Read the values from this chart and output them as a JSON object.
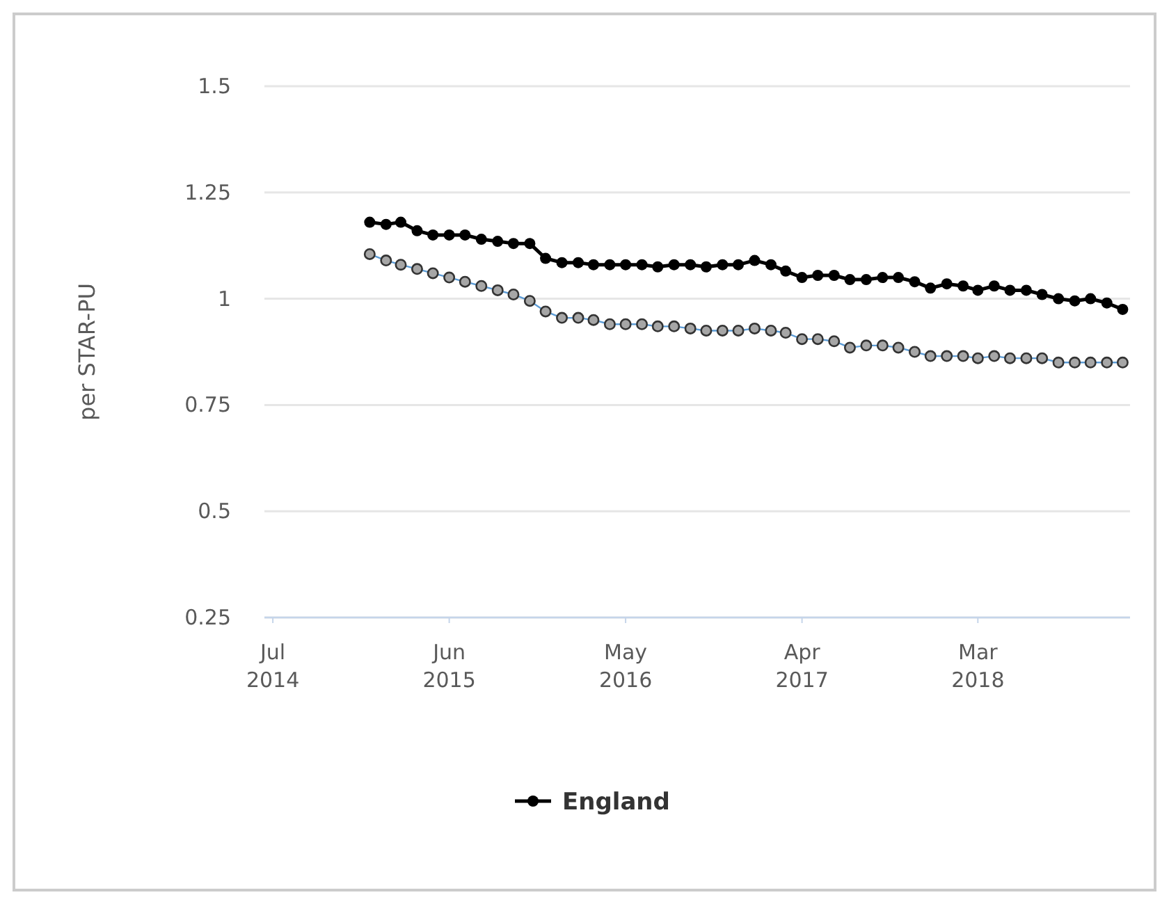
{
  "chart_data": {
    "type": "line",
    "ylabel": "per STAR-PU",
    "x": [
      "2015-01",
      "2015-02",
      "2015-03",
      "2015-04",
      "2015-05",
      "2015-06",
      "2015-07",
      "2015-08",
      "2015-09",
      "2015-10",
      "2015-11",
      "2015-12",
      "2016-01",
      "2016-02",
      "2016-03",
      "2016-04",
      "2016-05",
      "2016-06",
      "2016-07",
      "2016-08",
      "2016-09",
      "2016-10",
      "2016-11",
      "2016-12",
      "2017-01",
      "2017-02",
      "2017-03",
      "2017-04",
      "2017-05",
      "2017-06",
      "2017-07",
      "2017-08",
      "2017-09",
      "2017-10",
      "2017-11",
      "2017-12",
      "2018-01",
      "2018-02",
      "2018-03",
      "2018-04",
      "2018-05",
      "2018-06",
      "2018-07",
      "2018-08",
      "2018-09",
      "2018-10",
      "2018-11",
      "2018-12"
    ],
    "series": [
      {
        "name": "England",
        "color": "#000000",
        "values": [
          1.18,
          1.175,
          1.18,
          1.16,
          1.15,
          1.15,
          1.15,
          1.14,
          1.135,
          1.13,
          1.13,
          1.095,
          1.085,
          1.085,
          1.08,
          1.08,
          1.08,
          1.08,
          1.075,
          1.08,
          1.08,
          1.075,
          1.08,
          1.08,
          1.09,
          1.08,
          1.065,
          1.05,
          1.055,
          1.055,
          1.045,
          1.045,
          1.05,
          1.05,
          1.04,
          1.025,
          1.035,
          1.03,
          1.02,
          1.03,
          1.02,
          1.02,
          1.01,
          1.0,
          0.995,
          1.0,
          0.99,
          0.975
        ]
      },
      {
        "color": "#a6a6a6",
        "values": [
          1.105,
          1.09,
          1.08,
          1.07,
          1.06,
          1.05,
          1.04,
          1.03,
          1.02,
          1.01,
          0.995,
          0.97,
          0.955,
          0.955,
          0.95,
          0.94,
          0.94,
          0.94,
          0.935,
          0.935,
          0.93,
          0.925,
          0.925,
          0.925,
          0.93,
          0.925,
          0.92,
          0.905,
          0.905,
          0.9,
          0.885,
          0.89,
          0.89,
          0.885,
          0.875,
          0.865,
          0.865,
          0.865,
          0.86,
          0.865,
          0.86,
          0.86,
          0.86,
          0.85,
          0.85,
          0.85,
          0.85,
          0.85
        ]
      }
    ],
    "xlim": [
      "2014-06-15",
      "2018-12-15"
    ],
    "xticks": [
      {
        "value": "2014-07",
        "label": "Jul 2014"
      },
      {
        "value": "2015-06",
        "label": "Jun 2015"
      },
      {
        "value": "2016-05",
        "label": "May 2016"
      },
      {
        "value": "2017-04",
        "label": "Apr 2017"
      },
      {
        "value": "2018-03",
        "label": "Mar 2018"
      }
    ],
    "ylim": [
      0.25,
      1.5
    ],
    "yticks": [
      0.25,
      0.5,
      0.75,
      1,
      1.25,
      1.5
    ],
    "grid": "y",
    "legend": "bottom",
    "marker": "circle",
    "line_style": "solid"
  }
}
